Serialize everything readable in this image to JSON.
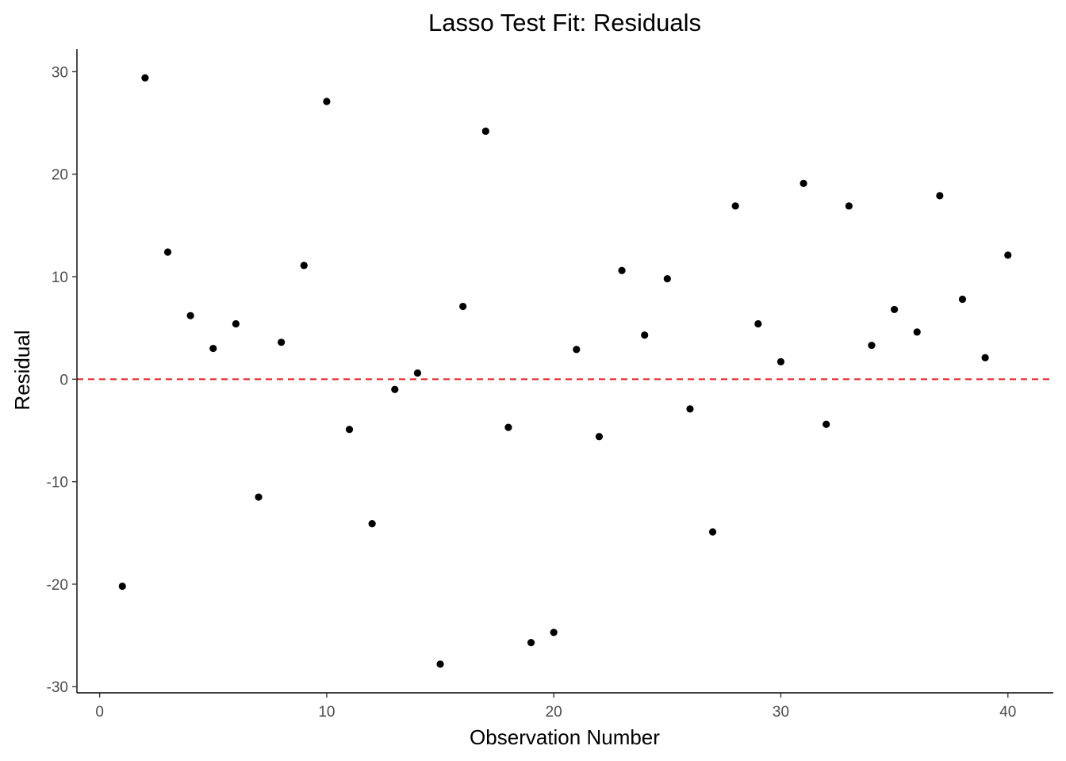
{
  "chart_data": {
    "type": "scatter",
    "title": "Lasso Test Fit: Residuals",
    "xlabel": "Observation Number",
    "ylabel": "Residual",
    "xlim": [
      -1,
      42
    ],
    "ylim": [
      -30.6,
      32.2
    ],
    "x_ticks": [
      0,
      10,
      20,
      30,
      40
    ],
    "y_ticks": [
      -30,
      -20,
      -10,
      0,
      10,
      20,
      30
    ],
    "grid": false,
    "point_color": "#000000",
    "reference_line": {
      "y": 0,
      "color": "#e41a1c",
      "style": "dashed"
    },
    "x": [
      1,
      2,
      3,
      4,
      5,
      6,
      7,
      8,
      9,
      10,
      11,
      12,
      13,
      14,
      15,
      16,
      17,
      18,
      19,
      20,
      21,
      22,
      23,
      24,
      25,
      26,
      27,
      28,
      29,
      30,
      31,
      32,
      33,
      34,
      35,
      36,
      37,
      38,
      39,
      40
    ],
    "y": [
      -20.2,
      29.4,
      12.4,
      6.2,
      3.0,
      5.4,
      -11.5,
      3.6,
      11.1,
      27.1,
      -4.9,
      -14.1,
      -1.0,
      0.6,
      -27.8,
      7.1,
      24.2,
      -4.7,
      -25.7,
      -24.7,
      2.9,
      -5.6,
      10.6,
      4.3,
      9.8,
      -2.9,
      -14.9,
      16.9,
      5.4,
      1.7,
      19.1,
      -4.4,
      16.9,
      3.3,
      6.8,
      4.6,
      17.9,
      7.8,
      2.1,
      12.1
    ]
  }
}
